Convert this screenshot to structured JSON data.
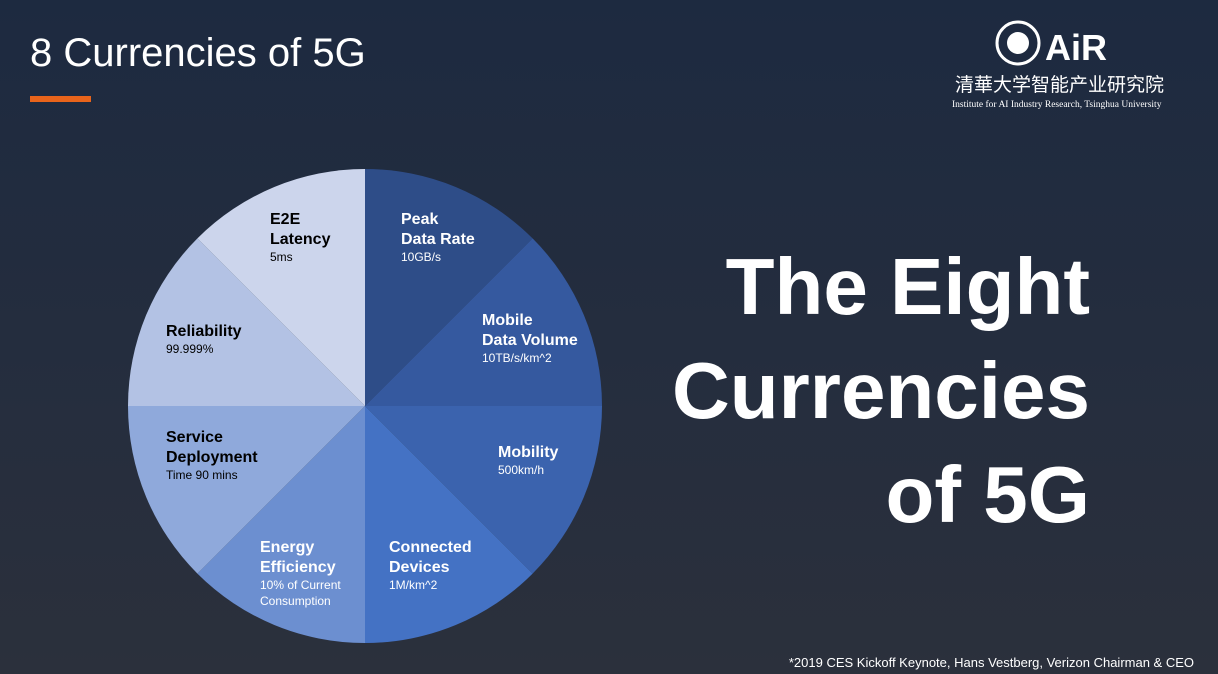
{
  "header": {
    "title": "8 Currencies of 5G"
  },
  "logo": {
    "name": "AiR",
    "chinese": "清華大学智能产业研究院",
    "english": "Institute for AI Industry Research, Tsinghua University"
  },
  "segments": [
    {
      "label": [
        "Peak",
        "Data Rate"
      ],
      "detail": [
        "10GB/s"
      ]
    },
    {
      "label": [
        "Mobile",
        "Data Volume"
      ],
      "detail": [
        "10TB/s/km^2"
      ]
    },
    {
      "label": [
        "Mobility"
      ],
      "detail": [
        "500km/h"
      ]
    },
    {
      "label": [
        "Connected",
        "Devices"
      ],
      "detail": [
        "1M/km^2"
      ]
    },
    {
      "label": [
        "Energy",
        "Efficiency"
      ],
      "detail": [
        "10% of Current",
        "Consumption"
      ]
    },
    {
      "label": [
        "Service",
        "Deployment"
      ],
      "detail": [
        "Time 90 mins"
      ]
    },
    {
      "label": [
        "Reliability"
      ],
      "detail": [
        "99.999%"
      ]
    },
    {
      "label": [
        "E2E",
        "Latency"
      ],
      "detail": [
        "5ms"
      ]
    }
  ],
  "headline": [
    "The Eight",
    "Currencies",
    "of 5G"
  ],
  "footnote": "*2019 CES Kickoff Keynote, Hans Vestberg, Verizon Chairman & CEO"
}
